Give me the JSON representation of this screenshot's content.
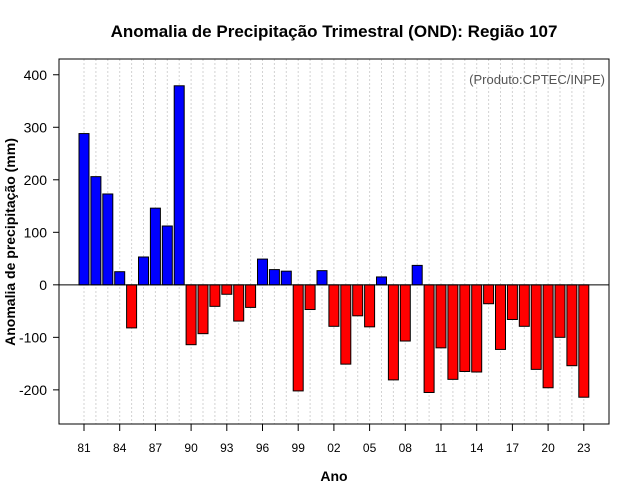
{
  "chart_data": {
    "type": "bar",
    "title": "Anomalia de Precipitação Trimestral (OND): Região 107",
    "xlabel": "Ano",
    "ylabel": "Anomalia de precipitação (mm)",
    "credit": "(Produto:CPTEC/INPE)",
    "ylim": [
      -265,
      430
    ],
    "yticks": [
      -200,
      -100,
      0,
      100,
      200,
      300,
      400
    ],
    "ytick_labels": [
      "-200",
      "-100",
      "0",
      "100",
      "200",
      "300",
      "400"
    ],
    "categories": [
      "81",
      "82",
      "83",
      "84",
      "85",
      "86",
      "87",
      "88",
      "89",
      "90",
      "91",
      "92",
      "93",
      "94",
      "95",
      "96",
      "97",
      "98",
      "99",
      "00",
      "01",
      "02",
      "03",
      "04",
      "05",
      "06",
      "07",
      "08",
      "09",
      "10",
      "11",
      "12",
      "13",
      "14",
      "15",
      "16",
      "17",
      "18",
      "19",
      "20",
      "21",
      "22",
      "23"
    ],
    "xtick_labels": [
      "81",
      "84",
      "87",
      "90",
      "93",
      "96",
      "99",
      "02",
      "05",
      "08",
      "11",
      "14",
      "17",
      "20",
      "23"
    ],
    "values": [
      288,
      206,
      173,
      25,
      -82,
      53,
      146,
      112,
      379,
      -114,
      -93,
      -41,
      -18,
      -69,
      -43,
      49,
      29,
      26,
      -202,
      -47,
      27,
      -79,
      -151,
      -59,
      -80,
      15,
      -181,
      -107,
      37,
      -205,
      -120,
      -180,
      -165,
      -166,
      -36,
      -123,
      -66,
      -79,
      -161,
      -196,
      -100,
      -154,
      -214
    ],
    "colors": {
      "positive": "#0000ff",
      "negative": "#ff0000",
      "bar_outline": "#000000",
      "grid": "#d3d3d3",
      "zero_line": "#000000",
      "credit_text": "#555555"
    },
    "grid": true,
    "legend": "none"
  }
}
